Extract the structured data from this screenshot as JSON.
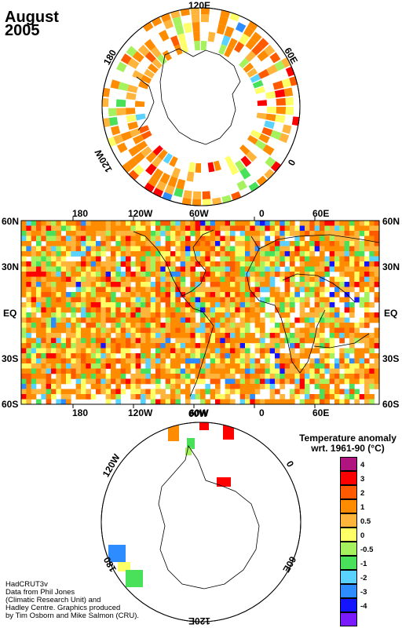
{
  "title": {
    "month": "August",
    "year": "2005"
  },
  "north_polar": {
    "labels": {
      "top": "120E",
      "left": "180",
      "right": "60E",
      "bottom_left": "120W",
      "bottom_right": "0"
    }
  },
  "mid_map": {
    "x_ticks": [
      "180",
      "120W",
      "60W",
      "0",
      "60E"
    ],
    "y_ticks": [
      "60N",
      "30N",
      "EQ",
      "30S",
      "60S"
    ]
  },
  "south_polar": {
    "labels": {
      "top_left": "120W",
      "top": "60W",
      "right": "0",
      "bottom_right": "60E",
      "bottom": "120E",
      "left": "180"
    }
  },
  "legend": {
    "title_line1": "Temperature anomaly",
    "title_line2": "wrt. 1961-90  (°C)",
    "bins": [
      {
        "label": "4",
        "color": "#b0147f"
      },
      {
        "label": "3",
        "color": "#ff0000"
      },
      {
        "label": "2",
        "color": "#ff5a00"
      },
      {
        "label": "1",
        "color": "#ff8c00"
      },
      {
        "label": "0.5",
        "color": "#ffb43c"
      },
      {
        "label": "0",
        "color": "#ffff66"
      },
      {
        "label": "-0.5",
        "color": "#a6f25e"
      },
      {
        "label": "-1",
        "color": "#49e05a"
      },
      {
        "label": "-2",
        "color": "#5ad2ff"
      },
      {
        "label": "-3",
        "color": "#2d8cff"
      },
      {
        "label": "-4",
        "color": "#1414ff"
      },
      {
        "label": "",
        "color": "#7a1bff"
      }
    ]
  },
  "credits": {
    "line1": "HadCRUT3v",
    "line2": "Data from Phil Jones",
    "line3": "(Climatic Research Unit) and",
    "line4": "Hadley Centre.  Graphics produced",
    "line5": "by Tim Osborn and Mike Salmon (CRU)."
  }
}
